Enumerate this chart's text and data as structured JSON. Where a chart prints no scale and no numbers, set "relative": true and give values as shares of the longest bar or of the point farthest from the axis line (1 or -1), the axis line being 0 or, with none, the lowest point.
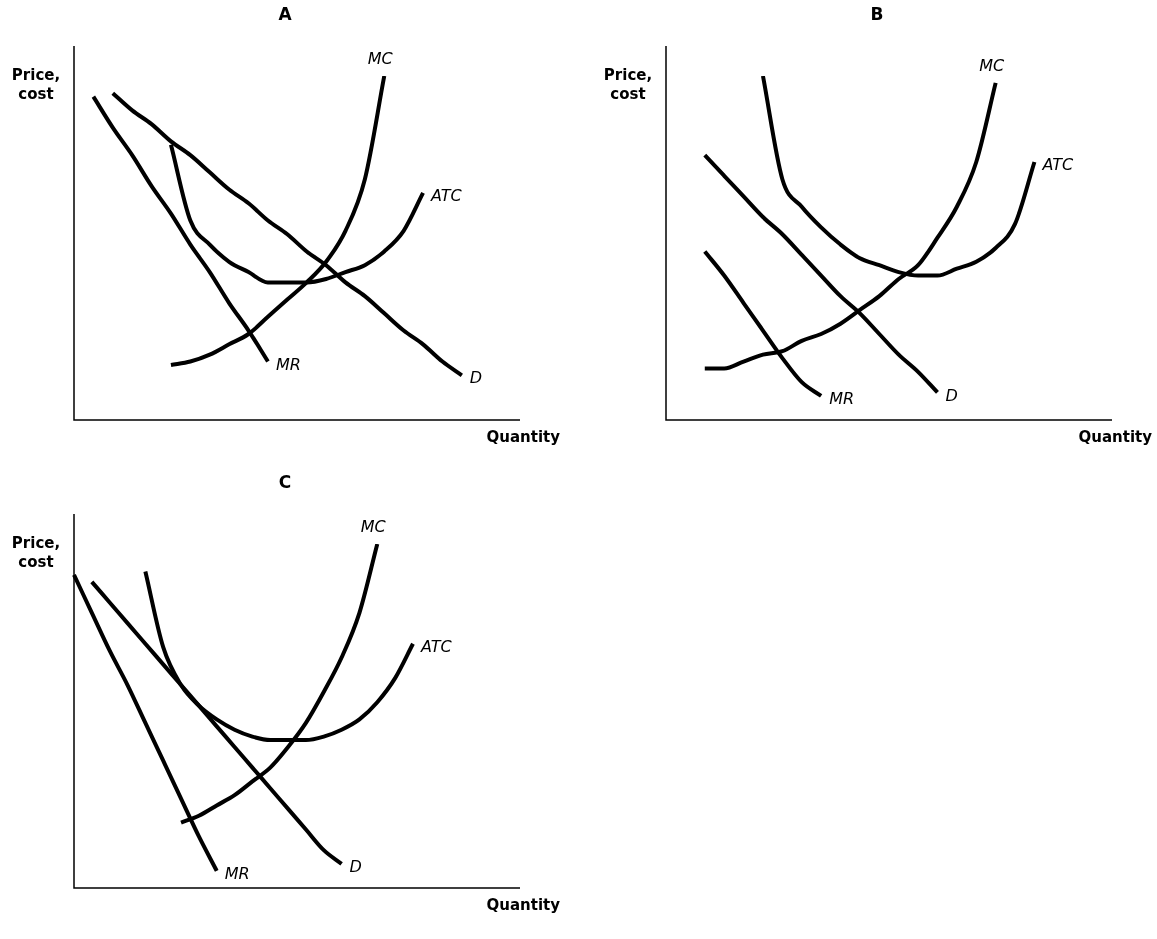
{
  "chart_data": [
    {
      "type": "line",
      "title": "A",
      "ylabel": "Price, cost",
      "xlabel": "Quantity",
      "relative": true,
      "marker": "none",
      "legend": false,
      "categories": [
        null,
        null,
        null,
        null,
        null,
        null,
        null,
        null,
        null,
        null,
        null,
        null,
        null,
        null,
        null,
        null,
        null,
        null,
        null,
        null,
        null,
        null,
        null,
        null
      ],
      "series": [
        {
          "name": "MC",
          "color": "#000000",
          "values": [
            null,
            null,
            null,
            null,
            null,
            0.16,
            0.17,
            0.19,
            0.22,
            0.25,
            0.3,
            0.35,
            0.4,
            0.46,
            0.55,
            0.7,
            1.0,
            null,
            null,
            null,
            null,
            null,
            null,
            null
          ]
        },
        {
          "name": "ATC",
          "color": "#000000",
          "values": [
            null,
            null,
            null,
            null,
            null,
            0.8,
            0.58,
            0.51,
            0.46,
            0.43,
            0.4,
            0.4,
            0.4,
            0.41,
            0.43,
            0.45,
            0.49,
            0.55,
            0.66,
            null,
            null,
            null,
            null,
            null
          ]
        },
        {
          "name": "MR",
          "color": "#000000",
          "values": [
            null,
            0.94,
            0.85,
            0.77,
            0.68,
            0.6,
            0.51,
            0.43,
            0.34,
            0.26,
            0.17,
            null,
            null,
            null,
            null,
            null,
            null,
            null,
            null,
            null,
            null,
            null,
            null,
            null
          ]
        },
        {
          "name": "D",
          "color": "#000000",
          "values": [
            null,
            null,
            0.95,
            0.9,
            0.86,
            0.81,
            0.77,
            0.72,
            0.67,
            0.63,
            0.58,
            0.54,
            0.49,
            0.45,
            0.4,
            0.36,
            0.31,
            0.26,
            0.22,
            0.17,
            0.13,
            null,
            null,
            null
          ]
        }
      ]
    },
    {
      "type": "line",
      "title": "B",
      "ylabel": "Price, cost",
      "xlabel": "Quantity",
      "relative": true,
      "marker": "none",
      "legend": false,
      "categories": [
        null,
        null,
        null,
        null,
        null,
        null,
        null,
        null,
        null,
        null,
        null,
        null,
        null,
        null,
        null,
        null,
        null,
        null,
        null,
        null,
        null,
        null,
        null,
        null
      ],
      "series": [
        {
          "name": "MC",
          "color": "#000000",
          "values": [
            null,
            null,
            0.15,
            0.15,
            0.17,
            0.19,
            0.2,
            0.23,
            0.25,
            0.28,
            0.32,
            0.36,
            0.41,
            0.45,
            0.53,
            0.62,
            0.75,
            0.98,
            null,
            null,
            null,
            null,
            null,
            null
          ]
        },
        {
          "name": "ATC",
          "color": "#000000",
          "values": [
            null,
            null,
            null,
            null,
            null,
            1.0,
            0.7,
            0.62,
            0.56,
            0.51,
            0.47,
            0.45,
            0.43,
            0.42,
            0.42,
            0.44,
            0.46,
            0.5,
            0.57,
            0.75,
            null,
            null,
            null,
            null
          ]
        },
        {
          "name": "MR",
          "color": "#000000",
          "values": [
            null,
            null,
            0.49,
            0.42,
            0.34,
            0.26,
            0.18,
            0.11,
            0.07,
            null,
            null,
            null,
            null,
            null,
            null,
            null,
            null,
            null,
            null,
            null,
            null,
            null,
            null,
            null
          ]
        },
        {
          "name": "D",
          "color": "#000000",
          "values": [
            null,
            null,
            0.77,
            0.71,
            0.65,
            0.59,
            0.54,
            0.48,
            0.42,
            0.36,
            0.31,
            0.25,
            0.19,
            0.14,
            0.08,
            null,
            null,
            null,
            null,
            null,
            null,
            null,
            null,
            null
          ]
        }
      ]
    },
    {
      "type": "line",
      "title": "C",
      "ylabel": "Price, cost",
      "xlabel": "Quantity",
      "relative": true,
      "marker": "none",
      "legend": false,
      "categories": [
        null,
        null,
        null,
        null,
        null,
        null,
        null,
        null,
        null,
        null,
        null,
        null,
        null,
        null,
        null,
        null,
        null,
        null,
        null,
        null,
        null,
        null,
        null,
        null,
        null,
        null
      ],
      "series": [
        {
          "name": "MC",
          "color": "#000000",
          "values": [
            null,
            null,
            null,
            null,
            null,
            null,
            0.19,
            0.21,
            0.24,
            0.27,
            0.31,
            0.35,
            0.41,
            0.48,
            0.57,
            0.67,
            0.8,
            1.0,
            null,
            null,
            null,
            null,
            null,
            null,
            null,
            null
          ]
        },
        {
          "name": "ATC",
          "color": "#000000",
          "values": [
            null,
            null,
            null,
            null,
            0.92,
            0.7,
            0.59,
            0.53,
            0.49,
            0.46,
            0.44,
            0.43,
            0.43,
            0.43,
            0.44,
            0.46,
            0.49,
            0.54,
            0.61,
            0.71,
            null,
            null,
            null,
            null,
            null,
            null
          ]
        },
        {
          "name": "MR",
          "color": "#000000",
          "values": [
            0.91,
            0.8,
            0.69,
            0.59,
            0.48,
            0.37,
            0.26,
            0.15,
            0.05,
            null,
            null,
            null,
            null,
            null,
            null,
            null,
            null,
            null,
            null,
            null,
            null,
            null,
            null,
            null,
            null,
            null
          ]
        },
        {
          "name": "D",
          "color": "#000000",
          "values": [
            null,
            0.89,
            0.83,
            0.77,
            0.71,
            0.65,
            0.59,
            0.53,
            0.47,
            0.41,
            0.35,
            0.29,
            0.23,
            0.17,
            0.11,
            0.07,
            null,
            null,
            null,
            null,
            null,
            null,
            null,
            null,
            null,
            null
          ]
        }
      ]
    }
  ]
}
